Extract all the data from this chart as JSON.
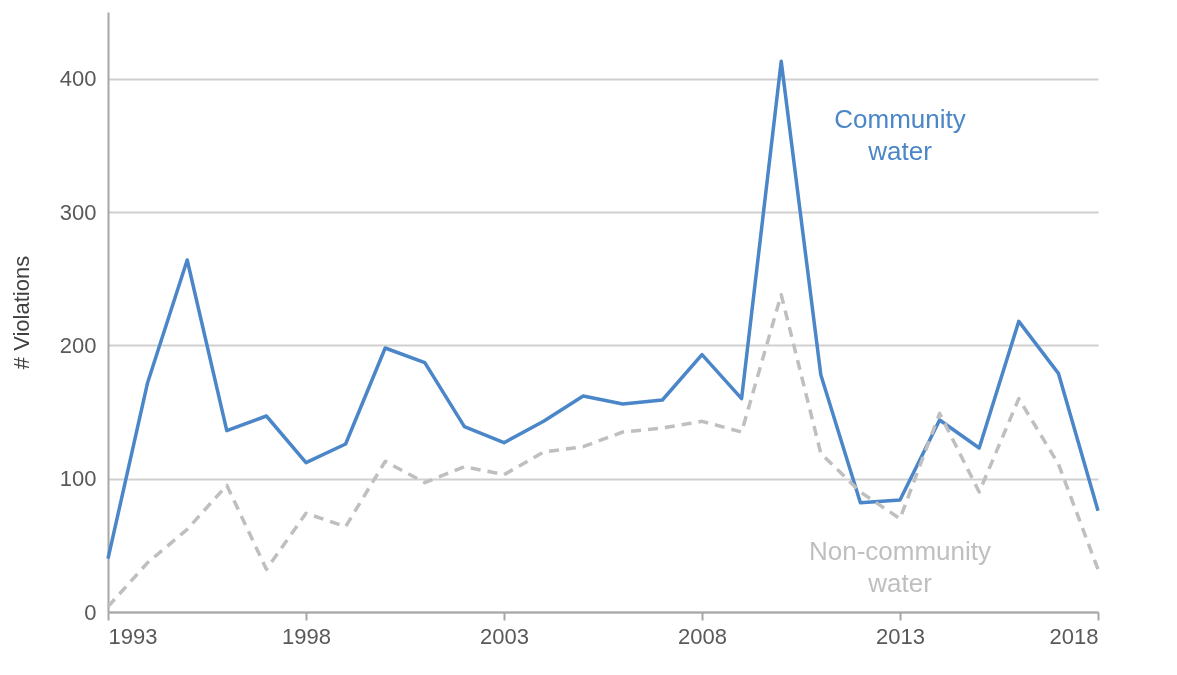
{
  "chart_data": {
    "type": "line",
    "ylabel": "# Violations",
    "x": [
      1993,
      1994,
      1995,
      1996,
      1997,
      1998,
      1999,
      2000,
      2001,
      2002,
      2003,
      2004,
      2005,
      2006,
      2007,
      2008,
      2009,
      2010,
      2011,
      2012,
      2013,
      2014,
      2015,
      2016,
      2017,
      2018
    ],
    "series": [
      {
        "name": "Community water",
        "color": "#4a86c8",
        "line_style": "solid",
        "values": [
          40,
          172,
          264,
          136,
          147,
          112,
          126,
          198,
          187,
          139,
          127,
          143,
          162,
          156,
          159,
          193,
          160,
          413,
          178,
          82,
          84,
          144,
          123,
          218,
          179,
          76
        ]
      },
      {
        "name": "Non-community water",
        "color": "#bfbfbf",
        "line_style": "dashed",
        "values": [
          4,
          37,
          62,
          95,
          32,
          74,
          64,
          113,
          97,
          109,
          103,
          120,
          124,
          135,
          138,
          143,
          135,
          238,
          119,
          90,
          70,
          149,
          90,
          160,
          111,
          32
        ]
      }
    ],
    "xlim": [
      1993,
      2018
    ],
    "xticks": [
      1993,
      1998,
      2003,
      2008,
      2013,
      2018
    ],
    "ylim": [
      0,
      450
    ],
    "yticks": [
      0,
      100,
      200,
      300,
      400
    ],
    "grid": "y",
    "legend": false,
    "marker": "none"
  }
}
